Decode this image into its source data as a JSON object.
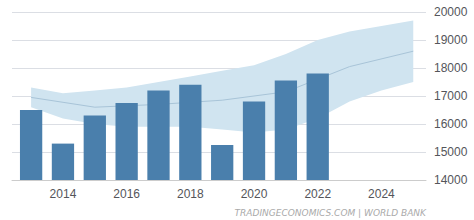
{
  "chart_data": {
    "type": "bar",
    "series": [
      {
        "type": "band",
        "color": "#d0e4f0",
        "x": [
          2013,
          2014,
          2015,
          2016,
          2017,
          2018,
          2019,
          2020,
          2021,
          2022,
          2023,
          2024,
          2025
        ],
        "upper": [
          17300,
          17100,
          17200,
          17300,
          17500,
          17700,
          17900,
          18100,
          18500,
          19000,
          19300,
          19500,
          19700
        ],
        "lower": [
          16600,
          16200,
          16000,
          15900,
          15900,
          15900,
          15800,
          15700,
          15800,
          16200,
          16800,
          17200,
          17500
        ]
      },
      {
        "type": "line",
        "color": "#a8c4d8",
        "x": [
          2013,
          2015,
          2017,
          2019,
          2021,
          2023,
          2025
        ],
        "values": [
          16950,
          16600,
          16700,
          16850,
          17150,
          18050,
          18600
        ]
      },
      {
        "type": "bar",
        "color": "#4a7fac",
        "x": [
          2013,
          2014,
          2015,
          2016,
          2017,
          2018,
          2019,
          2020,
          2021,
          2022
        ],
        "values": [
          16500,
          15300,
          16300,
          16750,
          17200,
          17400,
          15250,
          16800,
          17550,
          17800
        ]
      }
    ],
    "xlim": [
      2012.4,
      2025.4
    ],
    "xticks": [
      2014,
      2016,
      2018,
      2020,
      2022,
      2024
    ],
    "ylim": [
      14000,
      20000
    ],
    "yticks": [
      14000,
      15000,
      16000,
      17000,
      18000,
      19000,
      20000
    ],
    "grid": true,
    "annotation": "TRADINGECONOMICS.COM | WORLD BANK"
  }
}
